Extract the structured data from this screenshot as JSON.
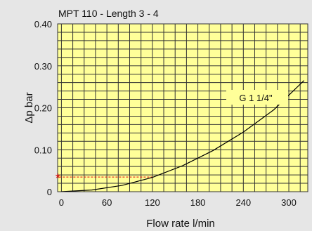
{
  "chart_data": {
    "type": "line",
    "title": "MPT 110 - Length 3 - 4",
    "xlabel": "Flow rate l/min",
    "ylabel": "Δp bar",
    "xlim": [
      -5,
      325
    ],
    "ylim": [
      0,
      0.4
    ],
    "x_ticks": [
      {
        "value": 0,
        "label": "0"
      },
      {
        "value": 60,
        "label": "60"
      },
      {
        "value": 120,
        "label": "120"
      },
      {
        "value": 180,
        "label": "180"
      },
      {
        "value": 240,
        "label": "240"
      },
      {
        "value": 300,
        "label": "300"
      }
    ],
    "y_ticks": [
      {
        "value": 0,
        "label": "0"
      },
      {
        "value": 0.1,
        "label": "0.10"
      },
      {
        "value": 0.2,
        "label": "0.20"
      },
      {
        "value": 0.3,
        "label": "0.30"
      },
      {
        "value": 0.4,
        "label": "0.40"
      }
    ],
    "grid": true,
    "colors": {
      "plot_background": "#ffff99",
      "grid": "#333333",
      "curve": "#000000",
      "marker": "#e00000"
    },
    "series": [
      {
        "name": "G 1 1/4\"",
        "x": [
          0,
          40,
          80,
          120,
          160,
          200,
          240,
          280,
          320
        ],
        "y": [
          0.0,
          0.004,
          0.015,
          0.034,
          0.062,
          0.098,
          0.142,
          0.195,
          0.265
        ]
      }
    ],
    "marker": {
      "symbol": "*",
      "x": 0,
      "y": 0.035
    }
  }
}
